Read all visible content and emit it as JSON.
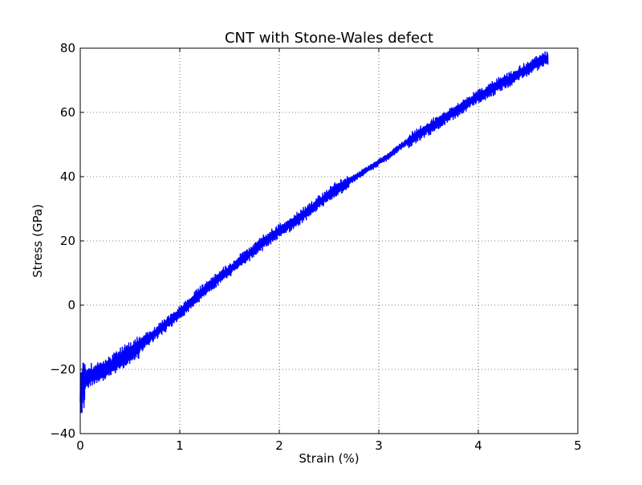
{
  "chart_data": {
    "type": "line",
    "title": "CNT with Stone-Wales defect",
    "xlabel": "Strain (%)",
    "ylabel": "Stress (GPa)",
    "xlim": [
      0,
      5
    ],
    "ylim": [
      -40,
      80
    ],
    "x_ticks": [
      0,
      1,
      2,
      3,
      4,
      5
    ],
    "y_ticks": [
      -40,
      -20,
      0,
      20,
      40,
      60,
      80
    ],
    "x_tick_labels": [
      "0",
      "1",
      "2",
      "3",
      "4",
      "5"
    ],
    "y_tick_labels": [
      "−40",
      "−20",
      "0",
      "20",
      "40",
      "60",
      "80"
    ],
    "grid": true,
    "grid_style": "dotted",
    "legend": "none",
    "series": [
      {
        "color": "#0000ff",
        "x": [
          0.0,
          0.02,
          0.05,
          0.1,
          0.2,
          0.3,
          0.4,
          0.5,
          0.6,
          0.7,
          0.8,
          0.9,
          1.0,
          1.1,
          1.2,
          1.3,
          1.4,
          1.5,
          1.6,
          1.7,
          1.8,
          1.9,
          2.0,
          2.1,
          2.2,
          2.3,
          2.4,
          2.5,
          2.6,
          2.7,
          2.8,
          2.9,
          3.0,
          3.1,
          3.2,
          3.3,
          3.4,
          3.5,
          3.6,
          3.7,
          3.8,
          3.9,
          4.0,
          4.1,
          4.2,
          4.3,
          4.4,
          4.5,
          4.6,
          4.7
        ],
        "y": [
          -30,
          -25,
          -23,
          -22,
          -21,
          -19,
          -17,
          -15,
          -12.5,
          -10,
          -7.5,
          -5,
          -2.5,
          0.5,
          3.5,
          6,
          8.5,
          11,
          13.5,
          16,
          18.5,
          21,
          23,
          25,
          27,
          29.5,
          32,
          34.5,
          36.5,
          38.5,
          40.5,
          42.5,
          44.5,
          46.5,
          49,
          51,
          53,
          55,
          57,
          59,
          61,
          63,
          65,
          66.5,
          68.5,
          70,
          72,
          73.5,
          75.5,
          77
        ]
      }
    ]
  }
}
